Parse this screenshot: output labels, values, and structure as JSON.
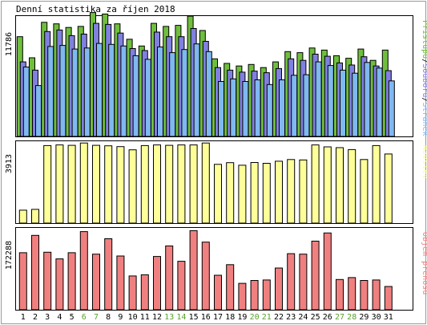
{
  "chart_data": [
    {
      "type": "bar",
      "title": "Denní statistika za říjen 2018",
      "ymax_label": "11786",
      "ylim": [
        0,
        11786
      ],
      "legend_parts": [
        "Přístupů",
        "Souborů",
        "Stránek"
      ],
      "legend_sep": "/",
      "categories": [
        "1",
        "2",
        "3",
        "4",
        "5",
        "6",
        "7",
        "8",
        "9",
        "10",
        "11",
        "12",
        "13",
        "14",
        "15",
        "16",
        "17",
        "18",
        "19",
        "20",
        "21",
        "22",
        "23",
        "24",
        "25",
        "26",
        "27",
        "28",
        "29",
        "30",
        "31"
      ],
      "weekend": [
        "6",
        "7",
        "13",
        "14",
        "20",
        "21",
        "27",
        "28"
      ],
      "series": [
        {
          "name": "Přístupů",
          "color": "#6fbe3d",
          "values": [
            9700,
            7650,
            11100,
            10950,
            10600,
            10700,
            12050,
            11900,
            10950,
            9450,
            8800,
            11000,
            10700,
            10800,
            11700,
            10300,
            7550,
            7100,
            6850,
            7000,
            6700,
            7250,
            8250,
            8150,
            8600,
            8400,
            7850,
            7600,
            8500,
            7400,
            8400
          ]
        },
        {
          "name": "Souborů",
          "color": "#8080e0",
          "values": [
            7250,
            6450,
            10200,
            10350,
            9800,
            9950,
            11000,
            10900,
            10050,
            8550,
            8350,
            10150,
            9700,
            9700,
            10500,
            9250,
            6700,
            6450,
            6250,
            6350,
            6200,
            6600,
            7550,
            7400,
            8000,
            7800,
            7150,
            6950,
            7750,
            6850,
            6400
          ]
        },
        {
          "name": "Stránek",
          "color": "#80b8f0",
          "values": [
            6750,
            4950,
            8750,
            8850,
            8500,
            8600,
            9050,
            8950,
            8800,
            7850,
            7500,
            8700,
            8150,
            8450,
            9000,
            8250,
            5350,
            5600,
            5350,
            5500,
            5050,
            5500,
            5950,
            6000,
            7250,
            6900,
            6450,
            6150,
            7200,
            6650,
            5400
          ]
        }
      ]
    },
    {
      "type": "bar",
      "ymax_label": "3913",
      "ylim": [
        0,
        3913
      ],
      "legend_parts": [
        "Návštěv"
      ],
      "series": [
        {
          "name": "Návštěv",
          "color": "#ffff99",
          "values": [
            610,
            650,
            3670,
            3700,
            3680,
            3790,
            3680,
            3660,
            3620,
            3470,
            3670,
            3700,
            3680,
            3700,
            3700,
            3790,
            2780,
            2860,
            2740,
            2870,
            2830,
            2930,
            3010,
            2990,
            3700,
            3610,
            3570,
            3480,
            3010,
            3670,
            3270
          ]
        }
      ]
    },
    {
      "type": "bar",
      "ymax_label": "172288",
      "ylim": [
        0,
        172288
      ],
      "legend_parts": [
        "Objem přenosu"
      ],
      "series": [
        {
          "name": "Objem přenosu",
          "color": "#f08080",
          "values": [
            119000,
            155000,
            120000,
            106000,
            119000,
            163000,
            116000,
            148000,
            112000,
            70500,
            73000,
            111000,
            133000,
            101000,
            165000,
            141000,
            72000,
            94000,
            55000,
            61000,
            62000,
            87000,
            117000,
            116000,
            143000,
            160000,
            63000,
            67000,
            61000,
            62000,
            48500
          ]
        }
      ]
    }
  ],
  "colors": {
    "weekend_label": "#5aa02c",
    "weekday_label": "#000000"
  }
}
